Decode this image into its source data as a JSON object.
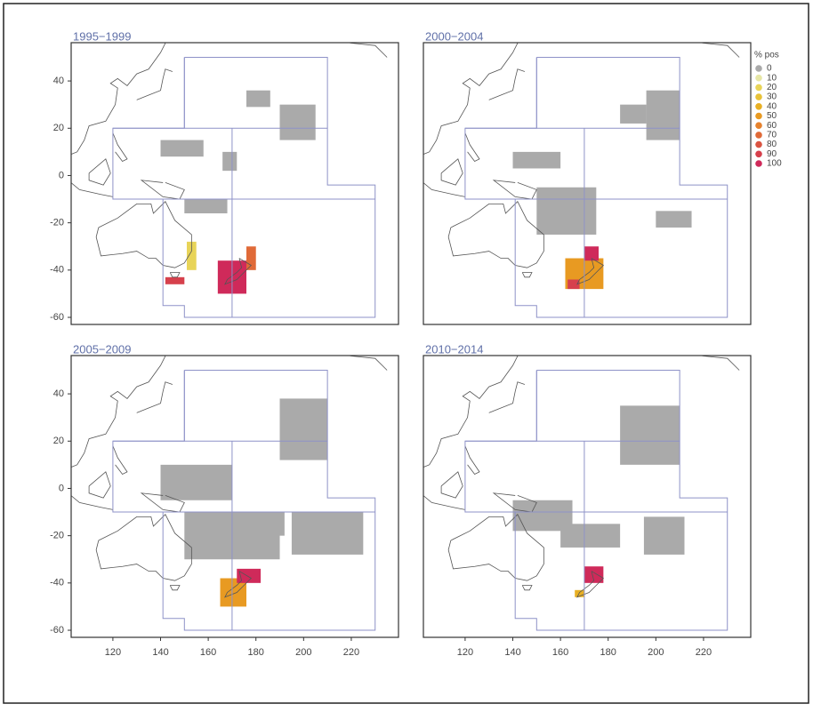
{
  "chart_data": [
    {
      "type": "map",
      "title": "1995−1999",
      "xlim": [
        102.5,
        239.8
      ],
      "ylim": [
        -63,
        56.2
      ],
      "yticks": [
        -60,
        -40,
        -20,
        0,
        20,
        40
      ]
    },
    {
      "type": "map",
      "title": "2000−2004",
      "xlim": [
        102.5,
        239.8
      ],
      "ylim": [
        -63,
        56.2
      ]
    },
    {
      "type": "map",
      "title": "2005−2009",
      "xlim": [
        102.5,
        239.8
      ],
      "ylim": [
        -63,
        56.2
      ],
      "yticks": [
        -60,
        -40,
        -20,
        0,
        20,
        40
      ],
      "xticks": [
        120,
        140,
        160,
        180,
        200,
        220
      ]
    },
    {
      "type": "map",
      "title": "2010−2014",
      "xlim": [
        102.5,
        239.8
      ],
      "ylim": [
        -63,
        56.2
      ],
      "xticks": [
        120,
        140,
        160,
        180,
        200,
        220
      ]
    }
  ],
  "legend": {
    "title": "% pos",
    "levels": [
      0,
      10,
      20,
      30,
      40,
      50,
      60,
      70,
      80,
      90,
      100
    ],
    "colors": [
      "#aaaaaa",
      "#e6e6a6",
      "#e8d458",
      "#e8c238",
      "#e8b024",
      "#e89a22",
      "#e6822e",
      "#e06a38",
      "#da5442",
      "#d6404c",
      "#cf2a5a"
    ]
  }
}
